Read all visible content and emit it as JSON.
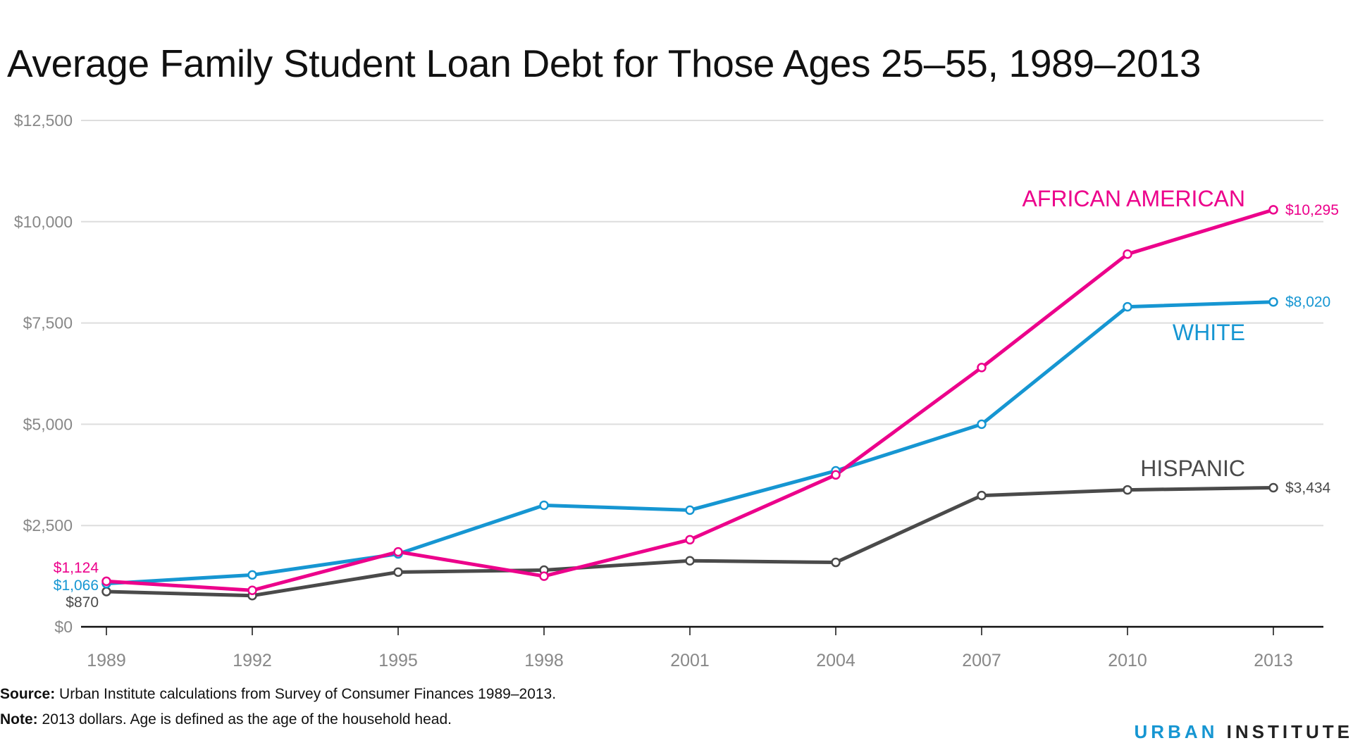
{
  "title": "Average Family Student Loan Debt for Those Ages 25–55, 1989–2013",
  "footer": {
    "source_label": "Source:",
    "source_text": "Urban Institute calculations from Survey of Consumer Finances 1989–2013.",
    "note_label": "Note:",
    "note_text": "2013 dollars. Age is defined as the age of the household head.",
    "brand_accent": "URBAN",
    "brand_main": "INSTITUTE"
  },
  "colors": {
    "african_american": "#ec008b",
    "white": "#1696d2",
    "hispanic": "#4a4a4a",
    "grid": "#dddddd",
    "axis": "#111111",
    "tick_text": "#888888"
  },
  "chart_data": {
    "type": "line",
    "title": "Average Family Student Loan Debt for Those Ages 25–55, 1989–2013",
    "x": [
      1989,
      1992,
      1995,
      1998,
      2001,
      2004,
      2007,
      2010,
      2013
    ],
    "ylim": [
      0,
      12500
    ],
    "yticks": [
      0,
      2500,
      5000,
      7500,
      10000,
      12500
    ],
    "ytick_labels": [
      "$0",
      "$2,500",
      "$5,000",
      "$7,500",
      "$10,000",
      "$12,500"
    ],
    "xtick_labels": [
      "1989",
      "1992",
      "1995",
      "1998",
      "2001",
      "2004",
      "2007",
      "2010",
      "2013"
    ],
    "grid": true,
    "series": [
      {
        "name": "AFRICAN AMERICAN",
        "color": "#ec008b",
        "values": [
          1124,
          900,
          1850,
          1250,
          2150,
          3750,
          6400,
          9200,
          10295
        ],
        "start_label": "$1,124",
        "end_label": "$10,295"
      },
      {
        "name": "WHITE",
        "color": "#1696d2",
        "values": [
          1066,
          1280,
          1800,
          3000,
          2880,
          3850,
          5000,
          7900,
          8020
        ],
        "start_label": "$1,066",
        "end_label": "$8,020"
      },
      {
        "name": "HISPANIC",
        "color": "#4a4a4a",
        "values": [
          870,
          770,
          1350,
          1400,
          1630,
          1590,
          3240,
          3380,
          3434
        ],
        "start_label": "$870",
        "end_label": "$3,434"
      }
    ]
  }
}
